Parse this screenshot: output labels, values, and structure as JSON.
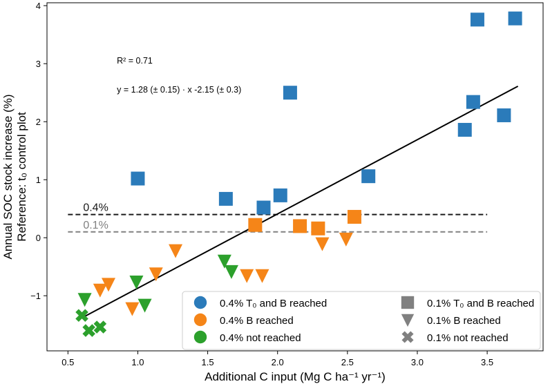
{
  "chart_data": {
    "type": "scatter",
    "xlabel": "Additional C input (Mg C ha⁻¹ yr⁻¹)",
    "ylabel_line1": "Annual SOC stock increase (%)",
    "ylabel_line2": "Reference: t₀ control plot",
    "xlim": [
      0.35,
      3.9
    ],
    "ylim": [
      -1.95,
      4.05
    ],
    "xticks": [
      0.5,
      1.0,
      1.5,
      2.0,
      2.5,
      3.0,
      3.5
    ],
    "xtick_labels": [
      "0.5",
      "1.0",
      "1.5",
      "2.0",
      "2.5",
      "3.0",
      "3.5"
    ],
    "yticks": [
      -1,
      0,
      1,
      2,
      3,
      4
    ],
    "ytick_labels": [
      "−1",
      "0",
      "1",
      "2",
      "3",
      "4"
    ],
    "r2_text": "R² = 0.71",
    "equation_text": "y = 1.28 (± 0.15) · x -2.15 (± 0.3)",
    "fit_line": {
      "x0": 0.62,
      "x1": 3.72,
      "slope": 1.28,
      "intercept": -2.15
    },
    "reference_lines": [
      {
        "label": "0.4%",
        "y": 0.4,
        "x0": 0.5,
        "x1": 3.5,
        "color": "#1a1a1a"
      },
      {
        "label": "0.1%",
        "y": 0.1,
        "x0": 0.5,
        "x1": 3.5,
        "color": "#808080"
      }
    ],
    "series": [
      {
        "name": "0.4% T₀ and B reached",
        "marker": "square",
        "color": "#2b7bba",
        "points": [
          [
            1.0,
            1.02
          ],
          [
            1.63,
            0.67
          ],
          [
            1.9,
            0.52
          ],
          [
            2.02,
            0.73
          ],
          [
            2.09,
            2.5
          ],
          [
            2.65,
            1.06
          ],
          [
            3.34,
            1.86
          ],
          [
            3.4,
            2.34
          ],
          [
            3.43,
            3.76
          ],
          [
            3.62,
            2.11
          ],
          [
            3.7,
            3.78
          ]
        ]
      },
      {
        "name": "0.4% B reached",
        "marker": "square",
        "color": "#f58518",
        "points": [
          [
            1.84,
            0.22
          ],
          [
            2.16,
            0.2
          ],
          [
            2.29,
            0.16
          ],
          [
            2.55,
            0.36
          ]
        ]
      },
      {
        "name": "0.4% B reached",
        "marker": "triangle",
        "color": "#f58518",
        "points": [
          [
            0.73,
            -0.9
          ],
          [
            0.79,
            -0.8
          ],
          [
            0.96,
            -1.22
          ],
          [
            1.13,
            -0.62
          ],
          [
            1.27,
            -0.22
          ],
          [
            1.78,
            -0.65
          ],
          [
            1.89,
            -0.65
          ],
          [
            2.32,
            -0.1
          ],
          [
            2.49,
            -0.02
          ]
        ]
      },
      {
        "name": "0.4% not reached",
        "marker": "triangle",
        "color": "#2ca02c",
        "points": [
          [
            0.62,
            -1.06
          ],
          [
            0.99,
            -0.76
          ],
          [
            1.05,
            -1.16
          ],
          [
            1.62,
            -0.4
          ],
          [
            1.67,
            -0.58
          ]
        ]
      },
      {
        "name": "0.4% not reached",
        "marker": "x",
        "color": "#2ca02c",
        "points": [
          [
            0.6,
            -1.34
          ],
          [
            0.65,
            -1.6
          ],
          [
            0.73,
            -1.54
          ]
        ]
      }
    ],
    "legend": {
      "placement": "bottom-right",
      "entries": [
        {
          "label": "0.4% T₀ and B reached",
          "symbol": "circle",
          "color": "#2b7bba"
        },
        {
          "label": "0.4% B reached",
          "symbol": "circle",
          "color": "#f58518"
        },
        {
          "label": "0.4% not reached",
          "symbol": "circle",
          "color": "#2ca02c"
        },
        {
          "label": "0.1% T₀ and B reached",
          "symbol": "square",
          "color": "#808080"
        },
        {
          "label": "0.1% B reached",
          "symbol": "triangle",
          "color": "#808080"
        },
        {
          "label": "0.1% not reached",
          "symbol": "x",
          "color": "#808080"
        }
      ]
    }
  }
}
